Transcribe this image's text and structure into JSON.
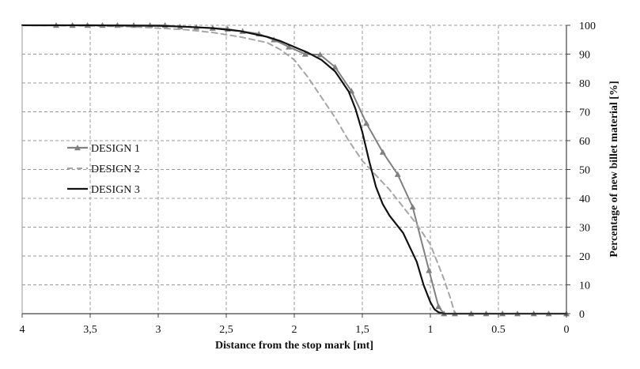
{
  "chart_data": {
    "type": "line",
    "title": "",
    "xlabel": "Distance from the stop mark [mt]",
    "ylabel": "Percentage of new billet material [%]",
    "xlim": [
      4,
      0
    ],
    "ylim": [
      0,
      100
    ],
    "grid": true,
    "legend_position": "left-middle",
    "x_tick_values": [
      4,
      3.5,
      3,
      2.5,
      2,
      1.5,
      1,
      0.5,
      0
    ],
    "x_tick_labels": [
      "4",
      "3,5",
      "3",
      "2,5",
      "2",
      "1,5",
      "1",
      "0.5",
      "0"
    ],
    "y_tick_values": [
      0,
      10,
      20,
      30,
      40,
      50,
      60,
      70,
      80,
      90,
      100
    ],
    "y_tick_labels": [
      "0",
      "10",
      "20",
      "30",
      "40",
      "50",
      "60",
      "70",
      "80",
      "90",
      "100"
    ],
    "series": [
      {
        "name": "DESIGN 1",
        "color": "#808080",
        "style": "solid-triangle-markers",
        "x": [
          4,
          3.75,
          3.63,
          3.52,
          3.41,
          3.3,
          3.18,
          3.06,
          2.95,
          2.84,
          2.72,
          2.6,
          2.49,
          2.38,
          2.26,
          2.15,
          2.04,
          1.92,
          1.81,
          1.7,
          1.58,
          1.47,
          1.35,
          1.24,
          1.13,
          1.01,
          0.94,
          0.9,
          0.82,
          0.7,
          0.59,
          0.47,
          0.36,
          0.24,
          0.13,
          0
        ],
        "y": [
          100,
          100,
          100,
          100,
          100,
          100,
          100,
          100,
          100,
          99.5,
          99.3,
          99,
          98.7,
          97.9,
          97,
          95,
          92.5,
          90,
          89.8,
          85.5,
          77.2,
          66,
          56,
          48.3,
          37,
          15,
          2.5,
          0,
          0,
          0,
          0,
          0,
          0,
          0,
          0,
          0
        ]
      },
      {
        "name": "DESIGN 2",
        "color": "#a6a6a6",
        "style": "dashed",
        "x": [
          4,
          3.5,
          3.2,
          3,
          2.8,
          2.6,
          2.4,
          2.2,
          2.1,
          2,
          1.9,
          1.8,
          1.7,
          1.6,
          1.5,
          1.4,
          1.3,
          1.2,
          1.1,
          1,
          0.95,
          0.9,
          0.85,
          0.82,
          0
        ],
        "y": [
          100,
          99.8,
          99.5,
          99,
          98.5,
          97.5,
          96,
          94,
          91.5,
          88,
          82,
          75,
          68,
          60,
          53,
          48,
          43,
          37,
          31,
          24,
          18,
          12,
          5,
          0,
          0
        ]
      },
      {
        "name": "DESIGN 3",
        "color": "#111111",
        "style": "solid",
        "x": [
          4,
          3.5,
          3,
          2.8,
          2.6,
          2.4,
          2.2,
          2.1,
          2,
          1.9,
          1.8,
          1.7,
          1.6,
          1.55,
          1.5,
          1.45,
          1.4,
          1.35,
          1.3,
          1.2,
          1.1,
          1.05,
          1,
          0.97,
          0.94,
          0.9,
          0.85,
          0
        ],
        "y": [
          100,
          100,
          99.8,
          99.5,
          99,
          98,
          96,
          94.5,
          92.5,
          90.5,
          88,
          84,
          77,
          71,
          63,
          53,
          44,
          38,
          34,
          28,
          18,
          10,
          4,
          1.5,
          0.5,
          0,
          0,
          0
        ]
      }
    ]
  }
}
